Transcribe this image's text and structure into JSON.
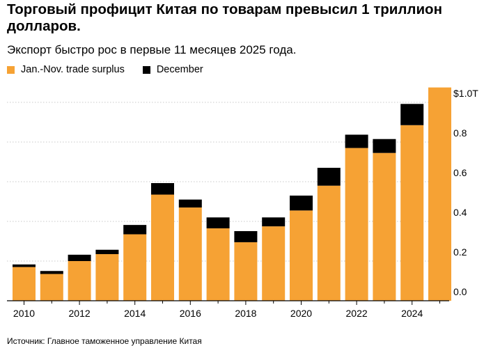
{
  "header": {
    "title": "Торговый профицит Китая по товарам превысил 1 триллион долларов.",
    "subtitle": "Экспорт быстро рос в первые 11 месяцев 2025 года."
  },
  "legend": [
    {
      "label": "Jan.-Nov. trade surplus",
      "color": "#f6a234"
    },
    {
      "label": "December",
      "color": "#000000"
    }
  ],
  "footer": {
    "source": "Источник: Главное таможенное управление Китая"
  },
  "chart_data": {
    "type": "bar",
    "stacked": true,
    "title": "Торговый профицит Китая по товарам превысил 1 триллион долларов.",
    "unit": "trillion USD",
    "categories": [
      "2010",
      "2011",
      "2012",
      "2013",
      "2014",
      "2015",
      "2016",
      "2017",
      "2018",
      "2019",
      "2020",
      "2021",
      "2022",
      "2023",
      "2024",
      "2025"
    ],
    "series": [
      {
        "name": "Jan.-Nov. trade surplus",
        "color": "#f6a234",
        "values": [
          0.17,
          0.135,
          0.2,
          0.235,
          0.335,
          0.535,
          0.47,
          0.365,
          0.295,
          0.375,
          0.455,
          0.58,
          0.77,
          0.745,
          0.885,
          1.075
        ]
      },
      {
        "name": "December",
        "color": "#000000",
        "values": [
          0.013,
          0.015,
          0.032,
          0.022,
          0.047,
          0.058,
          0.04,
          0.055,
          0.056,
          0.045,
          0.075,
          0.09,
          0.067,
          0.07,
          0.107,
          0
        ]
      }
    ],
    "y_ticks": [
      {
        "value": 0.0,
        "label": "0.0"
      },
      {
        "value": 0.2,
        "label": "0.2"
      },
      {
        "value": 0.4,
        "label": "0.4"
      },
      {
        "value": 0.6,
        "label": "0.6"
      },
      {
        "value": 0.8,
        "label": "0.8"
      },
      {
        "value": 1.0,
        "label": "$1.0T"
      }
    ],
    "x_tick_labels": [
      "2010",
      "2012",
      "2014",
      "2016",
      "2018",
      "2020",
      "2022",
      "2024"
    ],
    "ylim": [
      0,
      1.1
    ],
    "grid": true,
    "legend_position": "top-left"
  }
}
